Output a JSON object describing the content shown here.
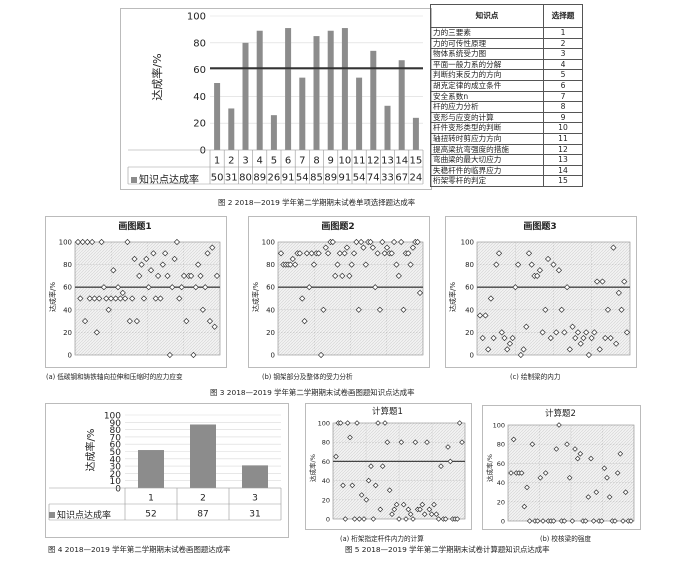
{
  "fig2": {
    "ylabel": "达成率/%",
    "legend_label": "知识点达成率",
    "caption": "图 2  2018—2019 学年第二学期期末试卷单项选择题达成率",
    "table_header": {
      "point": "知识点",
      "question": "选择题"
    },
    "table_rows": [
      {
        "point": "力的三要素",
        "q": "1"
      },
      {
        "point": "力的可传性原理",
        "q": "2"
      },
      {
        "point": "物体系统受力图",
        "q": "3"
      },
      {
        "point": "平面一般力系的分解",
        "q": "4"
      },
      {
        "point": "判断约束反力的方向",
        "q": "5"
      },
      {
        "point": "胡克定律的成立条件",
        "q": "6"
      },
      {
        "point": "安全系数n",
        "q": "7"
      },
      {
        "point": "杆的应力分析",
        "q": "8"
      },
      {
        "point": "变形与应变的计算",
        "q": "9"
      },
      {
        "point": "杆件变形类型的判断",
        "q": "10"
      },
      {
        "point": "轴扭转时剪应力方向",
        "q": "11"
      },
      {
        "point": "提高梁抗弯强度的措施",
        "q": "12"
      },
      {
        "point": "弯曲梁的最大切应力",
        "q": "13"
      },
      {
        "point": "失稳杆件的临界应力",
        "q": "14"
      },
      {
        "point": "桁架零杆的判定",
        "q": "15"
      }
    ]
  },
  "fig3": {
    "caption": "图 3  2018—2019 学年第二学期期末试卷画图题知识点达成率",
    "charts": [
      {
        "title": "画图题1",
        "ylabel": "达成率/%",
        "sub": "(a) 低碳钢和铸铁轴向拉伸和压缩时的应力应变"
      },
      {
        "title": "画图题2",
        "ylabel": "达成率/%",
        "sub": "(b) 钢架部分及整体的受力分析"
      },
      {
        "title": "画图题3",
        "ylabel": "达成率/%",
        "sub": "(c) 绘制梁的内力"
      }
    ]
  },
  "fig4": {
    "ylabel": "达成率/%",
    "legend_label": "知识点达成率",
    "caption": "图 4  2018—2019 学年第二学期期末试卷画图题达成率"
  },
  "fig5": {
    "caption": "图 5  2018—2019 学年第二学期期末试卷计算题知识点达成率",
    "charts": [
      {
        "title": "计算题1",
        "ylabel": "达成率/%",
        "sub": "(a) 桁架指定杆件内力的计算"
      },
      {
        "title": "计算题2",
        "ylabel": "达成率/%",
        "sub": "(b) 校核梁的强度"
      }
    ]
  },
  "chart_data": [
    {
      "type": "bar",
      "id": "fig2-bars",
      "categories": [
        "1",
        "2",
        "3",
        "4",
        "5",
        "6",
        "7",
        "8",
        "9",
        "10",
        "11",
        "12",
        "13",
        "14",
        "15"
      ],
      "series": [
        {
          "name": "知识点达成率",
          "values": [
            50,
            31,
            80,
            89,
            26,
            91,
            54,
            85,
            89,
            91,
            54,
            74,
            33,
            67,
            24
          ]
        }
      ],
      "ylim": [
        0,
        100
      ],
      "yticks": [
        0,
        20,
        40,
        60,
        80,
        100
      ],
      "reference_line": 61,
      "color": "#8c8c8c"
    },
    {
      "type": "scatter",
      "id": "draw1",
      "ylim": [
        0,
        100
      ],
      "yticks": [
        0,
        20,
        40,
        60,
        80,
        100
      ],
      "reference_line": 60,
      "points": [
        [
          1,
          100
        ],
        [
          2,
          50
        ],
        [
          3,
          100
        ],
        [
          4,
          30
        ],
        [
          5,
          100
        ],
        [
          6,
          50
        ],
        [
          7,
          100
        ],
        [
          8,
          50
        ],
        [
          9,
          20
        ],
        [
          10,
          50
        ],
        [
          11,
          100
        ],
        [
          12,
          60
        ],
        [
          13,
          50
        ],
        [
          14,
          40
        ],
        [
          15,
          50
        ],
        [
          16,
          75
        ],
        [
          17,
          50
        ],
        [
          18,
          60
        ],
        [
          19,
          50
        ],
        [
          20,
          55
        ],
        [
          21,
          50
        ],
        [
          22,
          100
        ],
        [
          23,
          30
        ],
        [
          24,
          50
        ],
        [
          25,
          85
        ],
        [
          26,
          30
        ],
        [
          27,
          70
        ],
        [
          28,
          80
        ],
        [
          29,
          50
        ],
        [
          30,
          85
        ],
        [
          31,
          60
        ],
        [
          32,
          75
        ],
        [
          33,
          90
        ],
        [
          34,
          50
        ],
        [
          35,
          70
        ],
        [
          36,
          50
        ],
        [
          37,
          80
        ],
        [
          38,
          90
        ],
        [
          39,
          70
        ],
        [
          40,
          0
        ],
        [
          41,
          60
        ],
        [
          42,
          85
        ],
        [
          43,
          100
        ],
        [
          44,
          50
        ],
        [
          45,
          60
        ],
        [
          46,
          70
        ],
        [
          47,
          30
        ],
        [
          48,
          70
        ],
        [
          49,
          70
        ],
        [
          50,
          0
        ],
        [
          51,
          60
        ],
        [
          52,
          80
        ],
        [
          53,
          70
        ],
        [
          54,
          40
        ],
        [
          55,
          60
        ],
        [
          56,
          90
        ],
        [
          57,
          30
        ],
        [
          58,
          95
        ],
        [
          59,
          25
        ],
        [
          60,
          70
        ]
      ]
    },
    {
      "type": "scatter",
      "id": "draw2",
      "ylim": [
        0,
        100
      ],
      "yticks": [
        0,
        20,
        40,
        60,
        80,
        100
      ],
      "reference_line": 60,
      "points": [
        [
          1,
          90
        ],
        [
          2,
          80
        ],
        [
          3,
          80
        ],
        [
          4,
          80
        ],
        [
          5,
          80
        ],
        [
          6,
          85
        ],
        [
          7,
          80
        ],
        [
          8,
          90
        ],
        [
          9,
          90
        ],
        [
          10,
          50
        ],
        [
          11,
          30
        ],
        [
          12,
          90
        ],
        [
          13,
          60
        ],
        [
          14,
          90
        ],
        [
          15,
          80
        ],
        [
          16,
          90
        ],
        [
          17,
          90
        ],
        [
          18,
          0
        ],
        [
          19,
          40
        ],
        [
          20,
          95
        ],
        [
          21,
          90
        ],
        [
          22,
          100
        ],
        [
          23,
          100
        ],
        [
          24,
          70
        ],
        [
          25,
          80
        ],
        [
          26,
          90
        ],
        [
          27,
          70
        ],
        [
          28,
          90
        ],
        [
          29,
          95
        ],
        [
          30,
          70
        ],
        [
          31,
          80
        ],
        [
          32,
          90
        ],
        [
          33,
          100
        ],
        [
          34,
          40
        ],
        [
          35,
          100
        ],
        [
          36,
          95
        ],
        [
          37,
          80
        ],
        [
          38,
          100
        ],
        [
          39,
          100
        ],
        [
          40,
          95
        ],
        [
          41,
          60
        ],
        [
          42,
          90
        ],
        [
          43,
          40
        ],
        [
          44,
          100
        ],
        [
          45,
          90
        ],
        [
          46,
          95
        ],
        [
          47,
          90
        ],
        [
          48,
          90
        ],
        [
          49,
          100
        ],
        [
          50,
          80
        ],
        [
          51,
          70
        ],
        [
          52,
          100
        ],
        [
          53,
          40
        ],
        [
          54,
          90
        ],
        [
          55,
          90
        ],
        [
          56,
          80
        ],
        [
          57,
          95
        ],
        [
          58,
          100
        ],
        [
          59,
          100
        ],
        [
          60,
          55
        ]
      ]
    },
    {
      "type": "scatter",
      "id": "draw3",
      "ylim": [
        0,
        100
      ],
      "yticks": [
        0,
        20,
        40,
        60,
        80,
        100
      ],
      "reference_line": 60,
      "points": [
        [
          1,
          35
        ],
        [
          2,
          15
        ],
        [
          3,
          35
        ],
        [
          4,
          5
        ],
        [
          5,
          50
        ],
        [
          6,
          15
        ],
        [
          7,
          80
        ],
        [
          8,
          90
        ],
        [
          9,
          20
        ],
        [
          10,
          15
        ],
        [
          11,
          5
        ],
        [
          12,
          10
        ],
        [
          13,
          15
        ],
        [
          14,
          60
        ],
        [
          15,
          80
        ],
        [
          16,
          0
        ],
        [
          17,
          5
        ],
        [
          18,
          25
        ],
        [
          19,
          90
        ],
        [
          20,
          80
        ],
        [
          21,
          70
        ],
        [
          22,
          70
        ],
        [
          23,
          75
        ],
        [
          24,
          20
        ],
        [
          25,
          40
        ],
        [
          26,
          85
        ],
        [
          27,
          15
        ],
        [
          28,
          80
        ],
        [
          29,
          20
        ],
        [
          30,
          75
        ],
        [
          31,
          40
        ],
        [
          32,
          20
        ],
        [
          33,
          60
        ],
        [
          34,
          5
        ],
        [
          35,
          25
        ],
        [
          36,
          15
        ],
        [
          37,
          20
        ],
        [
          38,
          10
        ],
        [
          39,
          15
        ],
        [
          40,
          20
        ],
        [
          41,
          0
        ],
        [
          42,
          15
        ],
        [
          43,
          20
        ],
        [
          44,
          65
        ],
        [
          45,
          5
        ],
        [
          46,
          65
        ],
        [
          47,
          15
        ],
        [
          48,
          40
        ],
        [
          49,
          15
        ],
        [
          50,
          95
        ],
        [
          51,
          10
        ],
        [
          52,
          55
        ],
        [
          53,
          40
        ],
        [
          54,
          65
        ],
        [
          55,
          20
        ]
      ]
    },
    {
      "type": "bar",
      "id": "fig4-bars",
      "categories": [
        "1",
        "2",
        "3"
      ],
      "series": [
        {
          "name": "知识点达成率",
          "values": [
            52,
            87,
            31
          ]
        }
      ],
      "ylim": [
        0,
        100
      ],
      "yticks": [
        0,
        10,
        20,
        30,
        40,
        50,
        60,
        70,
        80,
        90,
        100
      ],
      "color": "#8c8c8c"
    },
    {
      "type": "scatter",
      "id": "calc1",
      "ylim": [
        0,
        100
      ],
      "yticks": [
        0,
        20,
        40,
        60,
        80,
        100
      ],
      "reference_line": 60,
      "points": [
        [
          1,
          65
        ],
        [
          2,
          100
        ],
        [
          3,
          100
        ],
        [
          4,
          35
        ],
        [
          5,
          0
        ],
        [
          6,
          100
        ],
        [
          7,
          85
        ],
        [
          8,
          35
        ],
        [
          9,
          0
        ],
        [
          10,
          100
        ],
        [
          11,
          0
        ],
        [
          12,
          25
        ],
        [
          13,
          0
        ],
        [
          14,
          20
        ],
        [
          15,
          40
        ],
        [
          16,
          55
        ],
        [
          17,
          0
        ],
        [
          18,
          35
        ],
        [
          19,
          100
        ],
        [
          20,
          10
        ],
        [
          21,
          55
        ],
        [
          22,
          100
        ],
        [
          23,
          80
        ],
        [
          24,
          30
        ],
        [
          25,
          5
        ],
        [
          26,
          10
        ],
        [
          27,
          15
        ],
        [
          28,
          0
        ],
        [
          29,
          80
        ],
        [
          30,
          15
        ],
        [
          31,
          0
        ],
        [
          32,
          10
        ],
        [
          33,
          5
        ],
        [
          34,
          0
        ],
        [
          35,
          80
        ],
        [
          36,
          10
        ],
        [
          37,
          10
        ],
        [
          38,
          15
        ],
        [
          39,
          5
        ],
        [
          40,
          80
        ],
        [
          41,
          10
        ],
        [
          42,
          5
        ],
        [
          43,
          15
        ],
        [
          44,
          5
        ],
        [
          45,
          0
        ],
        [
          46,
          55
        ],
        [
          47,
          0
        ],
        [
          48,
          0
        ],
        [
          49,
          75
        ],
        [
          50,
          60
        ],
        [
          51,
          0
        ],
        [
          52,
          0
        ],
        [
          53,
          0
        ],
        [
          54,
          100
        ],
        [
          55,
          80
        ]
      ]
    },
    {
      "type": "scatter",
      "id": "calc2",
      "ylim": [
        0,
        100
      ],
      "yticks": [
        0,
        20,
        40,
        60,
        80,
        100
      ],
      "points": [
        [
          1,
          50
        ],
        [
          2,
          85
        ],
        [
          3,
          50
        ],
        [
          4,
          50
        ],
        [
          5,
          50
        ],
        [
          6,
          15
        ],
        [
          7,
          35
        ],
        [
          8,
          0
        ],
        [
          9,
          80
        ],
        [
          10,
          0
        ],
        [
          11,
          0
        ],
        [
          12,
          45
        ],
        [
          13,
          0
        ],
        [
          14,
          50
        ],
        [
          15,
          0
        ],
        [
          16,
          0
        ],
        [
          17,
          0
        ],
        [
          18,
          75
        ],
        [
          19,
          100
        ],
        [
          20,
          0
        ],
        [
          21,
          0
        ],
        [
          22,
          80
        ],
        [
          23,
          45
        ],
        [
          24,
          0
        ],
        [
          25,
          75
        ],
        [
          26,
          65
        ],
        [
          27,
          70
        ],
        [
          28,
          0
        ],
        [
          29,
          0
        ],
        [
          30,
          25
        ],
        [
          31,
          65
        ],
        [
          32,
          0
        ],
        [
          33,
          30
        ],
        [
          34,
          0
        ],
        [
          35,
          0
        ],
        [
          36,
          55
        ],
        [
          37,
          45
        ],
        [
          38,
          25
        ],
        [
          39,
          0
        ],
        [
          40,
          0
        ],
        [
          41,
          50
        ],
        [
          42,
          70
        ],
        [
          43,
          0
        ],
        [
          44,
          30
        ],
        [
          45,
          0
        ],
        [
          46,
          0
        ]
      ]
    }
  ]
}
